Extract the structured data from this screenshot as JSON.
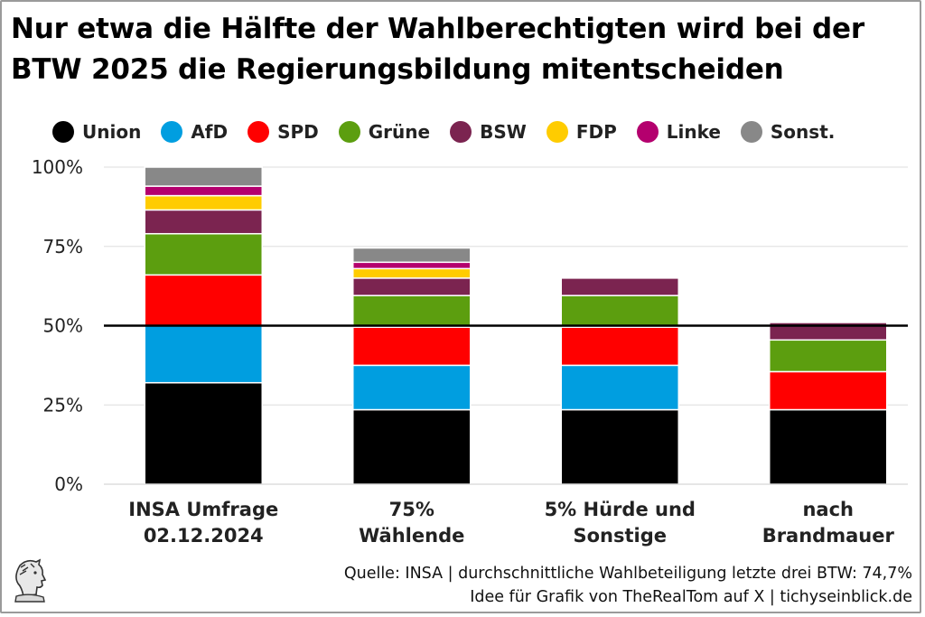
{
  "chart_data": {
    "type": "bar",
    "stacked": true,
    "title_lines": [
      "Nur etwa die Hälfte der Wahlberechtigten wird bei der",
      "BTW 2025 die Regierungsbildung mitentscheiden"
    ],
    "categories": [
      [
        "INSA Umfrage",
        "02.12.2024"
      ],
      [
        "75%",
        "Wählende"
      ],
      [
        "5% Hürde und",
        "Sonstige"
      ],
      [
        "nach",
        "Brandmauer"
      ]
    ],
    "series": [
      {
        "name": "Union",
        "color": "#000000",
        "values": [
          32,
          23.5,
          23.5,
          23.5
        ]
      },
      {
        "name": "AfD",
        "color": "#009ee0",
        "values": [
          18,
          14,
          14,
          0
        ]
      },
      {
        "name": "SPD",
        "color": "#ff0000",
        "values": [
          16,
          12,
          12,
          12
        ]
      },
      {
        "name": "Grüne",
        "color": "#5c9e0f",
        "values": [
          13,
          10,
          10,
          10
        ]
      },
      {
        "name": "BSW",
        "color": "#7b2450",
        "values": [
          7.5,
          5.5,
          5.5,
          5.5
        ]
      },
      {
        "name": "FDP",
        "color": "#ffcc00",
        "values": [
          4.5,
          3,
          0,
          0
        ]
      },
      {
        "name": "Linke",
        "color": "#b4006e",
        "values": [
          3,
          2,
          0,
          0
        ]
      },
      {
        "name": "Sonst.",
        "color": "#888888",
        "values": [
          6,
          4.5,
          0,
          0
        ]
      }
    ],
    "yticks": [
      "0%",
      "25%",
      "50%",
      "75%",
      "100%"
    ],
    "ylim": [
      0,
      100
    ],
    "reference_line": 50,
    "grid": true,
    "legend_position": "top"
  },
  "footer": {
    "source_line": "Quelle: INSA | durchschnittliche Wahlbeteiligung letzte drei BTW: 74,7%",
    "idea_line": "Idee für Grafik von TheRealTom auf X | tichyseinblick.de"
  },
  "logo_icon": "head-profile-icon"
}
